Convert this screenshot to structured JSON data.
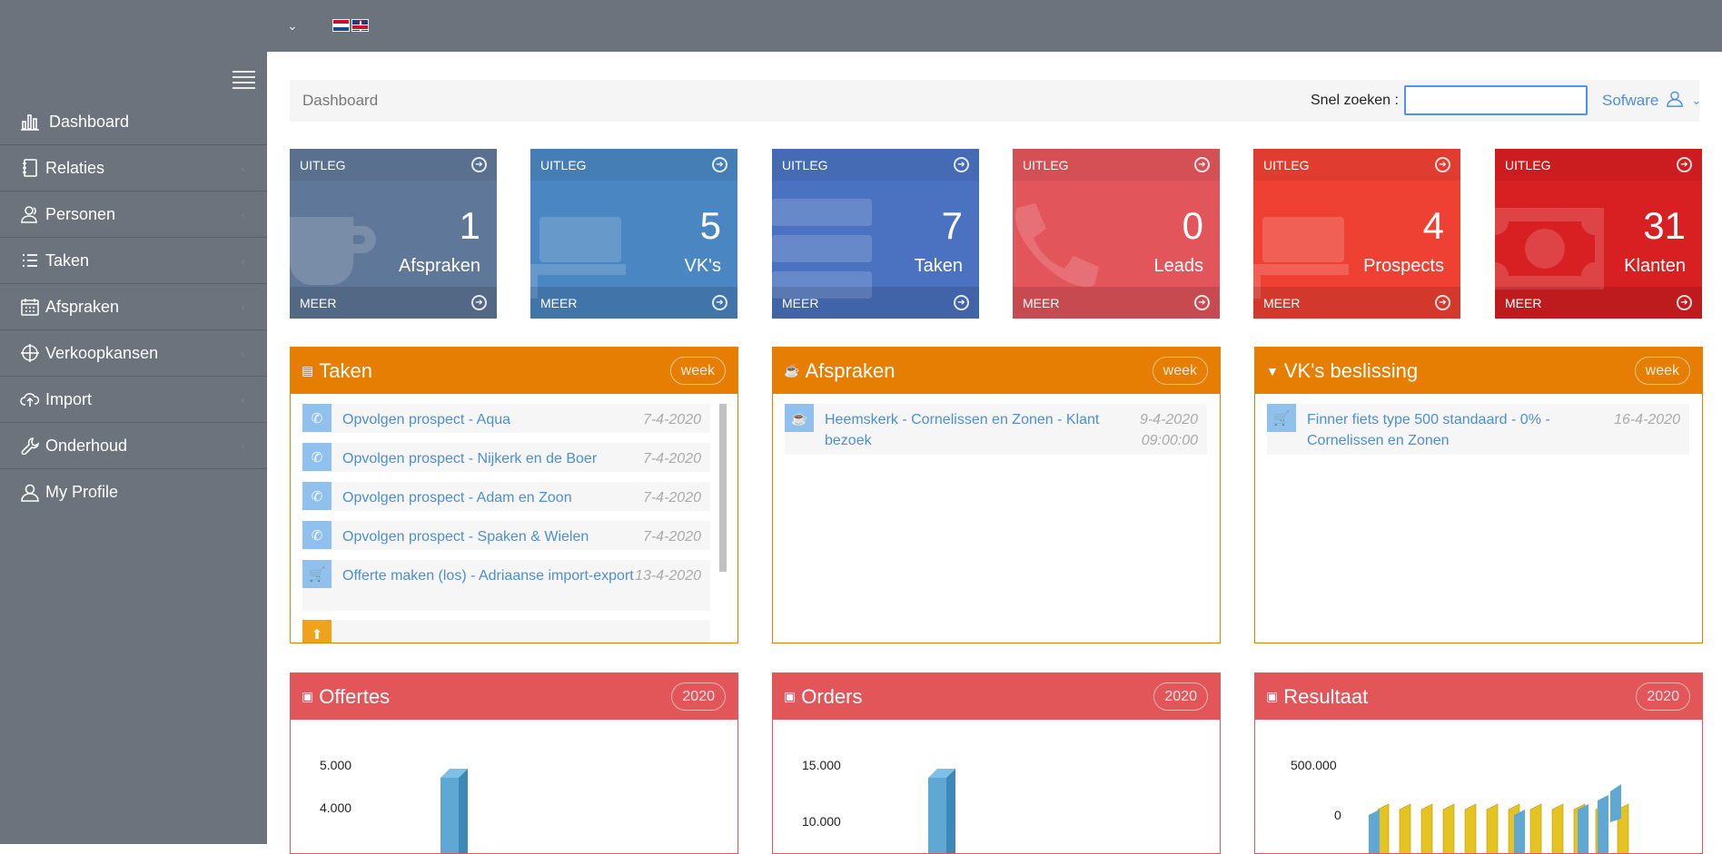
{
  "topbar": {
    "caret": "⌄"
  },
  "sidebar": {
    "items": [
      {
        "label": "Dashboard",
        "icon": "bar-chart-icon"
      },
      {
        "label": "Relaties",
        "icon": "book-icon"
      },
      {
        "label": "Personen",
        "icon": "users-icon"
      },
      {
        "label": "Taken",
        "icon": "list-icon"
      },
      {
        "label": "Afspraken",
        "icon": "calendar-icon"
      },
      {
        "label": "Verkoopkansen",
        "icon": "crosshair-icon"
      },
      {
        "label": "Import",
        "icon": "cloud-upload-icon"
      },
      {
        "label": "Onderhoud",
        "icon": "wrench-icon"
      },
      {
        "label": "My Profile",
        "icon": "user-icon"
      }
    ]
  },
  "header": {
    "title": "Dashboard",
    "search_label": "Snel zoeken :",
    "user": "Sofware"
  },
  "tiles": [
    {
      "top": "UITLEG",
      "bottom": "MEER",
      "num": "1",
      "label": "Afspraken",
      "color": "#5f7798",
      "icon": "coffee-icon"
    },
    {
      "top": "UITLEG",
      "bottom": "MEER",
      "num": "5",
      "label": "VK's",
      "color": "#4a86c1",
      "icon": "desk-icon"
    },
    {
      "top": "UITLEG",
      "bottom": "MEER",
      "num": "7",
      "label": "Taken",
      "color": "#4a72c0",
      "icon": "server-icon"
    },
    {
      "top": "UITLEG",
      "bottom": "MEER",
      "num": "0",
      "label": "Leads",
      "color": "#e2555a",
      "icon": "phone-icon"
    },
    {
      "top": "UITLEG",
      "bottom": "MEER",
      "num": "4",
      "label": "Prospects",
      "color": "#ef4133",
      "icon": "desk-icon"
    },
    {
      "top": "UITLEG",
      "bottom": "MEER",
      "num": "31",
      "label": "Klanten",
      "color": "#d81f21",
      "icon": "money-icon"
    }
  ],
  "taken": {
    "title": "Taken",
    "pill": "week",
    "items": [
      {
        "text": "Opvolgen prospect - Aqua",
        "date": "7-4-2020",
        "icon": "phone-icon"
      },
      {
        "text": "Opvolgen prospect - Nijkerk en de Boer",
        "date": "7-4-2020",
        "icon": "phone-icon"
      },
      {
        "text": "Opvolgen prospect - Adam en Zoon",
        "date": "7-4-2020",
        "icon": "phone-icon"
      },
      {
        "text": "Opvolgen prospect - Spaken & Wielen",
        "date": "7-4-2020",
        "icon": "phone-icon"
      },
      {
        "text": "Offerte maken (los) - Adriaanse import-export",
        "date": "13-4-2020",
        "icon": "cart-icon"
      }
    ]
  },
  "afspraken": {
    "title": "Afspraken",
    "pill": "week",
    "items": [
      {
        "text": "Heemskerk - Cornelissen en Zonen - Klant bezoek",
        "date": "9-4-2020 09:00:00",
        "icon": "coffee-icon"
      }
    ]
  },
  "vks": {
    "title": "VK's beslissing",
    "pill": "week",
    "items": [
      {
        "text": "Finner fiets type 500 standaard - 0% - Cornelissen en Zonen",
        "date": "16-4-2020",
        "icon": "cart-icon"
      }
    ]
  },
  "offertes": {
    "title": "Offertes",
    "pill": "2020",
    "yticks": [
      "5.000",
      "4.000"
    ]
  },
  "orders": {
    "title": "Orders",
    "pill": "2020",
    "yticks": [
      "15.000",
      "10.000"
    ]
  },
  "resultaat": {
    "title": "Resultaat",
    "pill": "2020",
    "yticks": [
      "500.000",
      "0"
    ]
  }
}
